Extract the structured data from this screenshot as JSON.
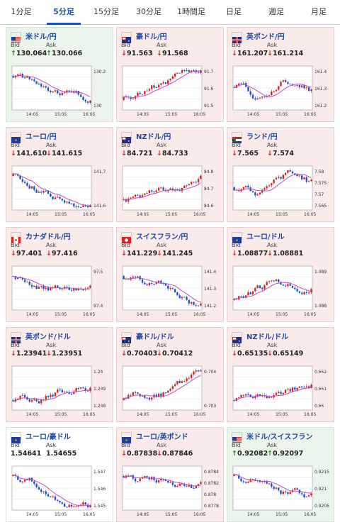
{
  "tabs": [
    "1分足",
    "5分足",
    "15分足",
    "30分足",
    "1時間足",
    "日足",
    "週足",
    "月足"
  ],
  "active_tab": 1,
  "labels": {
    "bid": "Bid",
    "ask": "Ask"
  },
  "arrows": {
    "down": "↓",
    "up": "↑"
  },
  "colors": {
    "up_candle": "#1a4fc4",
    "down_candle": "#d42020",
    "ma_line": "#c04bc4",
    "ma_line2": "#3fa0c4"
  },
  "cards": [
    {
      "pair": "米ドル/円",
      "trend": "up",
      "flag": "us",
      "bid": "130.064",
      "ask": "130.066",
      "chart_data": {
        "type": "line",
        "y_ticks": [
          "130.2",
          "130"
        ],
        "x_ticks": [
          "14:05",
          "15:05",
          "16:05"
        ],
        "shape": "downtrend"
      }
    },
    {
      "pair": "豪ドル/円",
      "trend": "down",
      "flag": "au",
      "bid": "91.563",
      "ask": "91.568",
      "chart_data": {
        "type": "line",
        "y_ticks": [
          "91.7",
          "91.6",
          "91.5"
        ],
        "x_ticks": [
          "14:05",
          "15:05",
          "16:05"
        ],
        "shape": "uptrend"
      }
    },
    {
      "pair": "英ポンド/円",
      "trend": "down",
      "flag": "gb",
      "bid": "161.207",
      "ask": "161.214",
      "chart_data": {
        "type": "line",
        "y_ticks": [
          "161.4",
          "161.3",
          "161.2"
        ],
        "x_ticks": [
          "14:05",
          "15:05",
          "16:05"
        ],
        "shape": "mixed"
      }
    },
    {
      "pair": "ユーロ/円",
      "trend": "down",
      "flag": "eu",
      "bid": "141.610",
      "ask": "141.615",
      "chart_data": {
        "type": "line",
        "y_ticks": [
          "141.7",
          "141.6"
        ],
        "x_ticks": [
          "14:05",
          "15:05",
          "16:05"
        ],
        "shape": "downtrend"
      }
    },
    {
      "pair": "NZドル/円",
      "trend": "down",
      "flag": "nz",
      "bid": "84.721",
      "ask": "84.733",
      "chart_data": {
        "type": "line",
        "y_ticks": [
          "84.8",
          "84.7",
          "84.6"
        ],
        "x_ticks": [
          "14:05",
          "15:05",
          "16:05"
        ],
        "shape": "uptrend"
      }
    },
    {
      "pair": "ランド/円",
      "trend": "down",
      "flag": "za",
      "bid": "7.565",
      "ask": "7.574",
      "chart_data": {
        "type": "line",
        "y_ticks": [
          "7.58",
          "7.575",
          "7.57",
          "7.565"
        ],
        "x_ticks": [
          "14:05",
          "15:05",
          "16:05"
        ],
        "shape": "mixed"
      }
    },
    {
      "pair": "カナダドル/円",
      "trend": "down",
      "flag": "ca",
      "bid": "97.401",
      "ask": "97.416",
      "chart_data": {
        "type": "line",
        "y_ticks": [
          "97.5",
          "97.4"
        ],
        "x_ticks": [
          "14:05",
          "15:05",
          "16:05"
        ],
        "shape": "downtrend"
      }
    },
    {
      "pair": "スイスフラン/円",
      "trend": "down",
      "flag": "ch",
      "bid": "141.229",
      "ask": "141.245",
      "chart_data": {
        "type": "line",
        "y_ticks": [
          "141.4",
          "141.3",
          "141.2"
        ],
        "x_ticks": [
          "14:05",
          "15:05",
          "16:05"
        ],
        "shape": "downtrend"
      }
    },
    {
      "pair": "ユーロ/ドル",
      "trend": "down",
      "flag": "eu",
      "bid": "1.08877",
      "ask": "1.08881",
      "chart_data": {
        "type": "line",
        "y_ticks": [
          "1.089",
          "1.088"
        ],
        "x_ticks": [
          "14:05",
          "15:05",
          "16:05"
        ],
        "shape": "uptrend"
      }
    },
    {
      "pair": "英ポンド/ドル",
      "trend": "down",
      "flag": "gb",
      "bid": "1.23941",
      "ask": "1.23951",
      "chart_data": {
        "type": "line",
        "y_ticks": [
          "1.24",
          "1.239",
          "1.238"
        ],
        "x_ticks": [
          "14:05",
          "15:05",
          "16:05"
        ],
        "shape": "uptrend"
      }
    },
    {
      "pair": "豪ドル/ドル",
      "trend": "down",
      "flag": "au",
      "bid": "0.70403",
      "ask": "0.70412",
      "chart_data": {
        "type": "line",
        "y_ticks": [
          "0.704",
          "0.703"
        ],
        "x_ticks": [
          "14:05",
          "15:05",
          "16:05"
        ],
        "shape": "uptrend"
      }
    },
    {
      "pair": "NZドル/ドル",
      "trend": "down",
      "flag": "nz",
      "bid": "0.65135",
      "ask": "0.65149",
      "chart_data": {
        "type": "line",
        "y_ticks": [
          "0.652",
          "0.651",
          "0.65"
        ],
        "x_ticks": [
          "14:05",
          "15:05",
          "16:05"
        ],
        "shape": "uptrend"
      }
    },
    {
      "pair": "ユーロ/豪ドル",
      "trend": "flat",
      "flag": "eu",
      "bid": "1.54641",
      "ask": "1.54655",
      "chart_data": {
        "type": "line",
        "y_ticks": [
          "1.547",
          "1.546",
          "1.545"
        ],
        "x_ticks": [
          "14:05",
          "15:05",
          "16:05"
        ],
        "shape": "downtrend"
      }
    },
    {
      "pair": "ユーロ/英ポンド",
      "trend": "down",
      "flag": "eu",
      "bid": "0.87838",
      "ask": "0.87846",
      "chart_data": {
        "type": "line",
        "y_ticks": [
          "0.8784",
          "0.8782",
          "0.878",
          "0.8778"
        ],
        "x_ticks": [
          "14:05",
          "15:05",
          "16:05"
        ],
        "shape": "downtrend"
      }
    },
    {
      "pair": "米ドル/スイスフラン",
      "trend": "up",
      "flag": "us",
      "bid": "0.92082",
      "ask": "0.92097",
      "chart_data": {
        "type": "line",
        "y_ticks": [
          "0.9215",
          "0.921",
          "0.9205"
        ],
        "x_ticks": [
          "14:05",
          "15:05",
          "16:05"
        ],
        "shape": "downtrend"
      }
    }
  ]
}
